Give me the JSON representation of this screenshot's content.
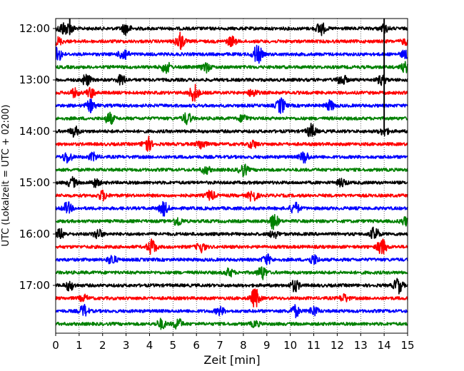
{
  "chart_data": {
    "type": "line",
    "title": "",
    "xlabel": "Zeit  [min]",
    "ylabel": "UTC (Lokalzeit = UTC + 02:00)",
    "xlim": [
      0,
      15
    ],
    "x_ticks": [
      "0",
      "1",
      "2",
      "3",
      "4",
      "5",
      "6",
      "7",
      "8",
      "9",
      "10",
      "11",
      "12",
      "13",
      "14",
      "15"
    ],
    "y_ticks": [
      "12:00",
      "13:00",
      "14:00",
      "15:00",
      "16:00",
      "17:00"
    ],
    "grid_x": true,
    "trace_interval_min": 15,
    "trace_start": "12:00",
    "trace_colors": [
      "#000000",
      "#ff0000",
      "#0000ff",
      "#008000"
    ],
    "traces": [
      {
        "start": "12:00",
        "color": "#000000",
        "events": [
          [
            0.3,
            0.6
          ],
          [
            0.6,
            0.5
          ],
          [
            3.0,
            0.6
          ],
          [
            11.3,
            0.7
          ],
          [
            14.0,
            0.4
          ]
        ]
      },
      {
        "start": "12:15",
        "color": "#ff0000",
        "events": [
          [
            0.1,
            0.4
          ],
          [
            5.3,
            0.9
          ],
          [
            7.5,
            0.5
          ],
          [
            14.9,
            0.3
          ]
        ]
      },
      {
        "start": "12:30",
        "color": "#0000ff",
        "events": [
          [
            0.1,
            0.7
          ],
          [
            2.9,
            0.7
          ],
          [
            8.6,
            1.0
          ],
          [
            14.9,
            0.4
          ]
        ]
      },
      {
        "start": "12:45",
        "color": "#008000",
        "events": [
          [
            4.7,
            0.6
          ],
          [
            6.4,
            0.5
          ],
          [
            14.9,
            0.5
          ]
        ]
      },
      {
        "start": "13:00",
        "color": "#000000",
        "events": [
          [
            1.3,
            0.6
          ],
          [
            2.8,
            0.5
          ],
          [
            12.2,
            0.6
          ],
          [
            13.9,
            0.5
          ]
        ]
      },
      {
        "start": "13:15",
        "color": "#ff0000",
        "events": [
          [
            0.8,
            0.4
          ],
          [
            1.5,
            0.5
          ],
          [
            5.9,
            0.9
          ],
          [
            8.4,
            0.4
          ]
        ]
      },
      {
        "start": "13:30",
        "color": "#0000ff",
        "events": [
          [
            1.5,
            0.6
          ],
          [
            9.6,
            0.8
          ],
          [
            11.7,
            0.5
          ]
        ]
      },
      {
        "start": "13:45",
        "color": "#008000",
        "events": [
          [
            2.3,
            0.6
          ],
          [
            5.6,
            0.6
          ],
          [
            8.0,
            0.4
          ]
        ]
      },
      {
        "start": "14:00",
        "color": "#000000",
        "events": [
          [
            0.8,
            0.5
          ],
          [
            10.9,
            0.7
          ],
          [
            14.0,
            0.4
          ]
        ]
      },
      {
        "start": "14:15",
        "color": "#ff0000",
        "events": [
          [
            3.9,
            0.8
          ],
          [
            6.2,
            0.5
          ],
          [
            8.4,
            0.4
          ]
        ]
      },
      {
        "start": "14:30",
        "color": "#0000ff",
        "events": [
          [
            0.5,
            0.6
          ],
          [
            1.6,
            0.4
          ],
          [
            10.6,
            0.6
          ]
        ]
      },
      {
        "start": "14:45",
        "color": "#008000",
        "events": [
          [
            6.4,
            0.4
          ],
          [
            8.0,
            0.6
          ]
        ]
      },
      {
        "start": "15:00",
        "color": "#000000",
        "events": [
          [
            0.7,
            0.5
          ],
          [
            1.7,
            0.4
          ],
          [
            12.2,
            0.4
          ]
        ]
      },
      {
        "start": "15:15",
        "color": "#ff0000",
        "events": [
          [
            2.0,
            0.5
          ],
          [
            6.6,
            0.5
          ],
          [
            8.4,
            0.6
          ]
        ]
      },
      {
        "start": "15:30",
        "color": "#0000ff",
        "events": [
          [
            0.5,
            0.6
          ],
          [
            4.6,
            0.7
          ],
          [
            10.2,
            0.6
          ]
        ]
      },
      {
        "start": "15:45",
        "color": "#008000",
        "events": [
          [
            5.2,
            0.5
          ],
          [
            9.3,
            0.8
          ],
          [
            14.9,
            0.4
          ]
        ]
      },
      {
        "start": "16:00",
        "color": "#000000",
        "events": [
          [
            0.2,
            0.5
          ],
          [
            1.8,
            0.5
          ],
          [
            9.3,
            0.4
          ],
          [
            13.6,
            0.7
          ]
        ]
      },
      {
        "start": "16:15",
        "color": "#ff0000",
        "events": [
          [
            4.1,
            0.8
          ],
          [
            6.2,
            0.5
          ],
          [
            13.9,
            0.9
          ]
        ]
      },
      {
        "start": "16:30",
        "color": "#0000ff",
        "events": [
          [
            2.4,
            0.5
          ],
          [
            9.0,
            0.5
          ],
          [
            11.0,
            0.5
          ]
        ]
      },
      {
        "start": "16:45",
        "color": "#008000",
        "events": [
          [
            7.4,
            0.4
          ],
          [
            8.8,
            0.7
          ]
        ]
      },
      {
        "start": "17:00",
        "color": "#000000",
        "events": [
          [
            0.6,
            0.5
          ],
          [
            10.2,
            0.6
          ],
          [
            14.6,
            0.8
          ]
        ]
      },
      {
        "start": "17:15",
        "color": "#ff0000",
        "events": [
          [
            1.2,
            0.3
          ],
          [
            8.5,
            1.0
          ],
          [
            12.3,
            0.4
          ]
        ]
      },
      {
        "start": "17:30",
        "color": "#0000ff",
        "events": [
          [
            1.2,
            0.6
          ],
          [
            7.0,
            0.4
          ],
          [
            10.2,
            0.6
          ],
          [
            11.0,
            0.5
          ]
        ]
      },
      {
        "start": "17:45",
        "color": "#008000",
        "events": [
          [
            4.5,
            0.5
          ],
          [
            5.2,
            0.6
          ],
          [
            8.5,
            0.3
          ]
        ]
      }
    ]
  }
}
